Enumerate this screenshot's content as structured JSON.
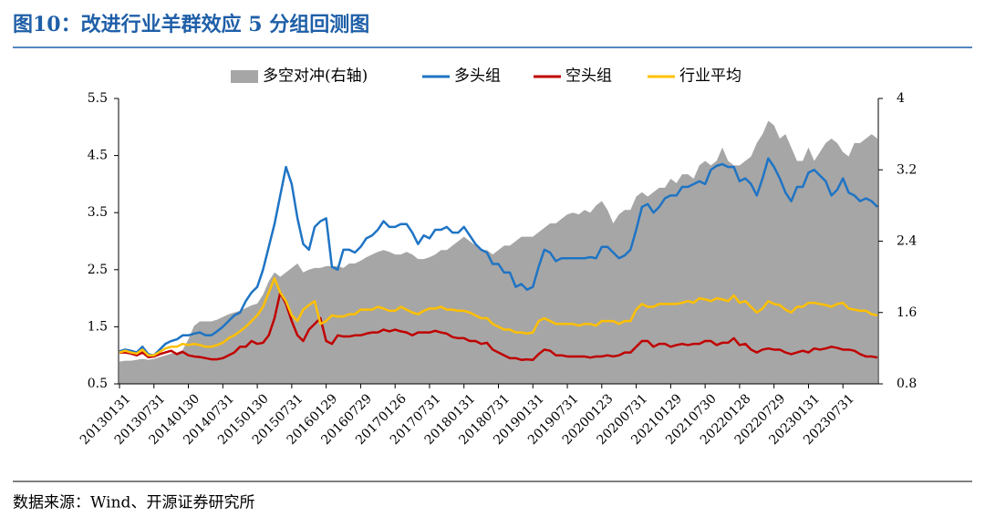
{
  "chart_data": {
    "type": "line",
    "title": "图10：改进行业羊群效应 5 分组回测图",
    "source": "数据来源：Wind、开源证券研究所",
    "categories": [
      "20130131",
      null,
      null,
      null,
      null,
      null,
      "20130731",
      null,
      null,
      null,
      null,
      null,
      "20140130",
      null,
      null,
      null,
      null,
      null,
      "20140731",
      null,
      null,
      null,
      null,
      null,
      "20150130",
      null,
      null,
      null,
      null,
      null,
      "20150731",
      null,
      null,
      null,
      null,
      null,
      "20160129",
      null,
      null,
      null,
      null,
      null,
      "20160729",
      null,
      null,
      null,
      null,
      null,
      "20170126",
      null,
      null,
      null,
      null,
      null,
      "20170731",
      null,
      null,
      null,
      null,
      null,
      "20180131",
      null,
      null,
      null,
      null,
      null,
      "20180731",
      null,
      null,
      null,
      null,
      null,
      "20190131",
      null,
      null,
      null,
      null,
      null,
      "20190731",
      null,
      null,
      null,
      null,
      null,
      "20200123",
      null,
      null,
      null,
      null,
      null,
      "20200731",
      null,
      null,
      null,
      null,
      null,
      "20210129",
      null,
      null,
      null,
      null,
      null,
      "20210730",
      null,
      null,
      null,
      null,
      null,
      "20220128",
      null,
      null,
      null,
      null,
      null,
      "20220729",
      null,
      null,
      null,
      null,
      null,
      "20230131",
      null,
      null,
      null,
      null,
      null,
      "20230731",
      null,
      null,
      null,
      null,
      null,
      null
    ],
    "series": [
      {
        "name": "多空对冲(右轴)",
        "type": "area",
        "axis": "y2",
        "color": "#a6a6a6",
        "values": [
          1.05,
          1.06,
          1.06,
          1.07,
          1.08,
          1.07,
          1.08,
          1.1,
          1.12,
          1.14,
          1.15,
          1.18,
          1.3,
          1.45,
          1.5,
          1.5,
          1.5,
          1.52,
          1.55,
          1.58,
          1.6,
          1.62,
          1.65,
          1.68,
          1.7,
          1.8,
          1.95,
          2.05,
          2.0,
          2.05,
          2.1,
          2.15,
          2.05,
          2.08,
          2.1,
          2.1,
          2.12,
          2.12,
          2.12,
          2.1,
          2.15,
          2.15,
          2.18,
          2.22,
          2.25,
          2.28,
          2.3,
          2.28,
          2.25,
          2.25,
          2.28,
          2.25,
          2.2,
          2.2,
          2.22,
          2.25,
          2.3,
          2.3,
          2.35,
          2.4,
          2.45,
          2.4,
          2.35,
          2.3,
          2.3,
          2.25,
          2.3,
          2.35,
          2.35,
          2.4,
          2.45,
          2.45,
          2.45,
          2.5,
          2.55,
          2.6,
          2.6,
          2.65,
          2.7,
          2.72,
          2.7,
          2.75,
          2.72,
          2.8,
          2.85,
          2.75,
          2.6,
          2.7,
          2.75,
          2.75,
          2.9,
          2.95,
          2.9,
          2.95,
          3.0,
          3.0,
          3.1,
          3.05,
          3.15,
          3.15,
          3.1,
          3.25,
          3.3,
          3.25,
          3.3,
          3.45,
          3.3,
          3.25,
          3.25,
          3.3,
          3.35,
          3.5,
          3.6,
          3.75,
          3.7,
          3.55,
          3.6,
          3.45,
          3.3,
          3.3,
          3.45,
          3.3,
          3.4,
          3.5,
          3.55,
          3.5,
          3.4,
          3.35,
          3.5,
          3.5,
          3.55,
          3.6,
          3.55
        ]
      },
      {
        "name": "多头组",
        "color": "#1f74c4",
        "values": [
          1.07,
          1.1,
          1.08,
          1.05,
          1.15,
          1.02,
          1.0,
          1.1,
          1.2,
          1.25,
          1.28,
          1.35,
          1.35,
          1.38,
          1.4,
          1.35,
          1.35,
          1.42,
          1.5,
          1.6,
          1.7,
          1.75,
          1.95,
          2.1,
          2.2,
          2.5,
          2.9,
          3.3,
          3.8,
          4.3,
          4.0,
          3.4,
          2.95,
          2.85,
          3.25,
          3.35,
          3.4,
          2.55,
          2.5,
          2.85,
          2.85,
          2.8,
          2.9,
          3.05,
          3.1,
          3.2,
          3.35,
          3.25,
          3.25,
          3.3,
          3.3,
          3.15,
          2.95,
          3.1,
          3.05,
          3.2,
          3.2,
          3.25,
          3.15,
          3.15,
          3.25,
          3.1,
          2.95,
          2.85,
          2.8,
          2.6,
          2.6,
          2.45,
          2.45,
          2.2,
          2.25,
          2.15,
          2.2,
          2.55,
          2.85,
          2.8,
          2.65,
          2.7,
          2.7,
          2.7,
          2.7,
          2.7,
          2.72,
          2.7,
          2.9,
          2.9,
          2.8,
          2.7,
          2.75,
          2.85,
          3.2,
          3.6,
          3.65,
          3.5,
          3.6,
          3.75,
          3.8,
          3.8,
          3.95,
          3.95,
          4.0,
          4.05,
          4.0,
          4.25,
          4.32,
          4.35,
          4.3,
          4.3,
          4.05,
          4.1,
          4.0,
          3.8,
          4.1,
          4.45,
          4.3,
          4.1,
          3.85,
          3.7,
          3.95,
          3.95,
          4.2,
          4.25,
          4.15,
          4.05,
          3.8,
          3.9,
          4.1,
          3.85,
          3.8,
          3.7,
          3.75,
          3.7,
          3.6
        ]
      },
      {
        "name": "空头组",
        "color": "#c00000",
        "values": [
          1.05,
          1.05,
          1.03,
          1.0,
          1.05,
          0.97,
          0.98,
          1.02,
          1.05,
          1.08,
          1.02,
          1.06,
          1.0,
          0.98,
          0.97,
          0.95,
          0.93,
          0.93,
          0.95,
          1.0,
          1.05,
          1.15,
          1.15,
          1.25,
          1.2,
          1.22,
          1.35,
          1.65,
          2.1,
          1.9,
          1.6,
          1.35,
          1.25,
          1.45,
          1.55,
          1.65,
          1.25,
          1.2,
          1.35,
          1.33,
          1.33,
          1.35,
          1.35,
          1.38,
          1.4,
          1.4,
          1.45,
          1.42,
          1.45,
          1.42,
          1.4,
          1.35,
          1.4,
          1.4,
          1.4,
          1.43,
          1.4,
          1.38,
          1.32,
          1.3,
          1.3,
          1.25,
          1.25,
          1.2,
          1.22,
          1.1,
          1.05,
          1.0,
          0.95,
          0.95,
          0.92,
          0.93,
          0.92,
          1.02,
          1.1,
          1.08,
          1.0,
          1.0,
          0.98,
          0.98,
          0.98,
          0.98,
          0.96,
          0.98,
          0.98,
          1.0,
          0.98,
          1.0,
          1.05,
          1.05,
          1.15,
          1.25,
          1.25,
          1.15,
          1.2,
          1.2,
          1.15,
          1.18,
          1.2,
          1.18,
          1.2,
          1.2,
          1.25,
          1.25,
          1.18,
          1.22,
          1.22,
          1.3,
          1.18,
          1.2,
          1.1,
          1.05,
          1.1,
          1.12,
          1.1,
          1.1,
          1.05,
          1.02,
          1.05,
          1.08,
          1.05,
          1.12,
          1.1,
          1.12,
          1.15,
          1.13,
          1.1,
          1.1,
          1.08,
          1.02,
          0.98,
          0.98,
          0.96
        ]
      },
      {
        "name": "行业平均",
        "color": "#ffc000",
        "values": [
          1.05,
          1.08,
          1.05,
          1.03,
          1.1,
          1.0,
          1.0,
          1.06,
          1.12,
          1.15,
          1.15,
          1.2,
          1.18,
          1.2,
          1.18,
          1.15,
          1.15,
          1.18,
          1.22,
          1.3,
          1.35,
          1.42,
          1.5,
          1.6,
          1.7,
          1.85,
          2.1,
          2.35,
          2.1,
          1.95,
          1.7,
          1.6,
          1.8,
          1.88,
          1.95,
          1.55,
          1.6,
          1.7,
          1.68,
          1.68,
          1.72,
          1.72,
          1.8,
          1.8,
          1.8,
          1.85,
          1.82,
          1.78,
          1.78,
          1.85,
          1.8,
          1.75,
          1.72,
          1.78,
          1.82,
          1.82,
          1.85,
          1.8,
          1.8,
          1.78,
          1.78,
          1.75,
          1.7,
          1.65,
          1.65,
          1.55,
          1.5,
          1.45,
          1.45,
          1.4,
          1.4,
          1.38,
          1.4,
          1.6,
          1.65,
          1.6,
          1.55,
          1.55,
          1.55,
          1.55,
          1.52,
          1.55,
          1.55,
          1.52,
          1.6,
          1.6,
          1.6,
          1.55,
          1.6,
          1.6,
          1.8,
          1.9,
          1.85,
          1.85,
          1.9,
          1.9,
          1.9,
          1.9,
          1.92,
          1.95,
          1.92,
          2.0,
          1.98,
          1.95,
          2.0,
          1.98,
          1.95,
          2.05,
          1.92,
          1.95,
          1.85,
          1.75,
          1.82,
          1.95,
          1.9,
          1.88,
          1.8,
          1.75,
          1.85,
          1.85,
          1.92,
          1.92,
          1.9,
          1.88,
          1.85,
          1.9,
          1.92,
          1.82,
          1.8,
          1.78,
          1.78,
          1.72,
          1.7
        ]
      }
    ],
    "ylim": [
      0.5,
      5.5
    ],
    "yticks": [
      0.5,
      1.5,
      2.5,
      3.5,
      4.5,
      5.5
    ],
    "y2lim": [
      0.8,
      4
    ],
    "y2ticks": [
      0.8,
      1.6,
      2.4,
      3.2,
      4
    ],
    "legend": "top"
  }
}
